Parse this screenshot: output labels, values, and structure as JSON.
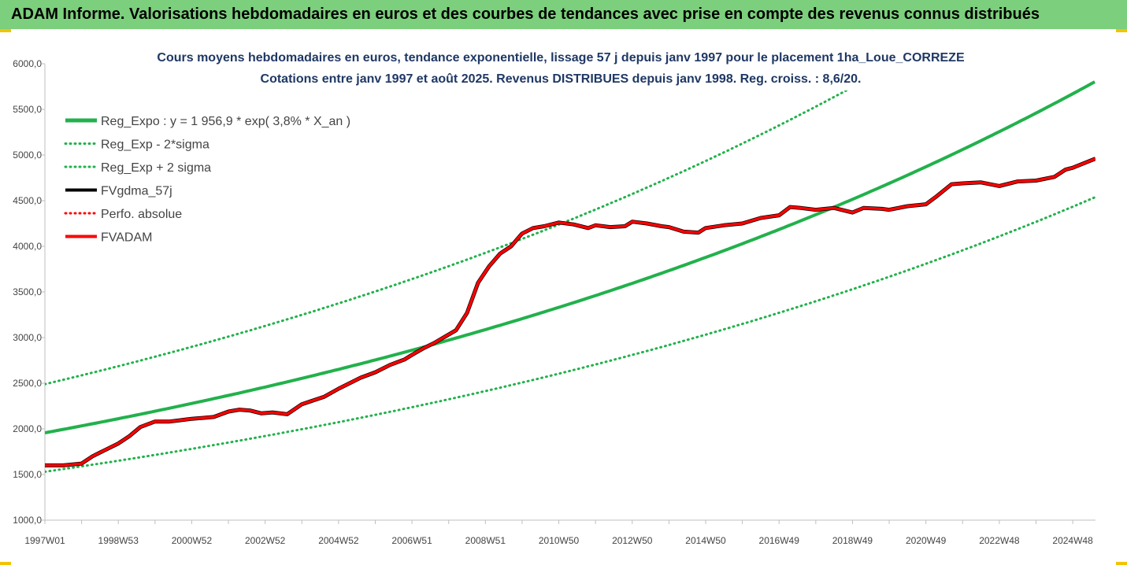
{
  "banner": {
    "text": "ADAM Informe. Valorisations hebdomadaires en euros et des courbes de tendances avec prise en compte des revenus connus distribués"
  },
  "chart_data": {
    "type": "line",
    "title_line1": "Cours moyens hebdomadaires en euros, tendance exponentielle, lissage 57 j depuis janv 1997  pour le placement 1ha_Loue_CORREZE",
    "title_line2": "Cotations entre janv 1997 et août 2025. Revenus DISTRIBUES depuis janv 1998. Reg. croiss. : 8,6/20.",
    "ylim": [
      1000,
      6000
    ],
    "y_ticks": [
      1000,
      1500,
      2000,
      2500,
      3000,
      3500,
      4000,
      4500,
      5000,
      5500,
      6000
    ],
    "y_tick_labels": [
      "1000,0",
      "1500,0",
      "2000,0",
      "2500,0",
      "3000,0",
      "3500,0",
      "4000,0",
      "4500,0",
      "5000,0",
      "5500,0",
      "6000,0"
    ],
    "x_range": [
      1997.0,
      2025.62
    ],
    "x_ticks": [
      {
        "x": 1997.0,
        "label": "1997W01"
      },
      {
        "x": 1999.0,
        "label": "1998W53"
      },
      {
        "x": 2001.0,
        "label": "2000W52"
      },
      {
        "x": 2003.0,
        "label": "2002W52"
      },
      {
        "x": 2005.0,
        "label": "2004W52"
      },
      {
        "x": 2007.0,
        "label": "2006W51"
      },
      {
        "x": 2009.0,
        "label": "2008W51"
      },
      {
        "x": 2011.0,
        "label": "2010W50"
      },
      {
        "x": 2013.0,
        "label": "2012W50"
      },
      {
        "x": 2015.0,
        "label": "2014W50"
      },
      {
        "x": 2017.0,
        "label": "2016W49"
      },
      {
        "x": 2019.0,
        "label": "2018W49"
      },
      {
        "x": 2021.0,
        "label": "2020W49"
      },
      {
        "x": 2023.0,
        "label": "2022W48"
      },
      {
        "x": 2025.0,
        "label": "2024W48"
      }
    ],
    "trend": {
      "base": 1956.9,
      "rate": 0.038
    },
    "band_low": {
      "base": 1530,
      "rate": 0.038
    },
    "band_high": {
      "base": 2490,
      "rate": 0.038
    },
    "series": [
      {
        "name": "Reg_Expo : y = 1 956,9 * exp( 3,8% *  X_an )",
        "color": "#22b14c",
        "style": "solid"
      },
      {
        "name": "Reg_Exp - 2*sigma",
        "color": "#22b14c",
        "style": "dotted"
      },
      {
        "name": "Reg_Exp + 2 sigma",
        "color": "#22b14c",
        "style": "dotted"
      },
      {
        "name": "FVgdma_57j",
        "color": "#000000",
        "style": "solid",
        "x": [
          1997.0,
          1997.5,
          1998.0,
          1998.3,
          1998.6,
          1999.0,
          1999.3,
          1999.6,
          2000.0,
          2000.4,
          2000.8,
          2001.0,
          2001.3,
          2001.6,
          2002.0,
          2002.3,
          2002.6,
          2002.9,
          2003.2,
          2003.6,
          2004.0,
          2004.3,
          2004.6,
          2005.0,
          2005.3,
          2005.6,
          2006.0,
          2006.4,
          2006.8,
          2007.0,
          2007.3,
          2007.6,
          2007.9,
          2008.2,
          2008.5,
          2008.8,
          2009.1,
          2009.4,
          2009.7,
          2010.0,
          2010.3,
          2010.6,
          2011.0,
          2011.4,
          2011.8,
          2012.0,
          2012.4,
          2012.8,
          2013.0,
          2013.4,
          2013.8,
          2014.0,
          2014.4,
          2014.8,
          2015.0,
          2015.5,
          2016.0,
          2016.5,
          2017.0,
          2017.3,
          2017.6,
          2018.0,
          2018.5,
          2019.0,
          2019.3,
          2019.8,
          2020.0,
          2020.5,
          2021.0,
          2021.3,
          2021.7,
          2022.0,
          2022.5,
          2023.0,
          2023.5,
          2024.0,
          2024.5,
          2024.8,
          2025.0,
          2025.62
        ],
        "values": [
          1600,
          1600,
          1620,
          1700,
          1760,
          1840,
          1920,
          2020,
          2080,
          2080,
          2100,
          2110,
          2120,
          2130,
          2190,
          2210,
          2200,
          2170,
          2180,
          2160,
          2270,
          2310,
          2350,
          2440,
          2500,
          2560,
          2620,
          2700,
          2760,
          2810,
          2880,
          2940,
          3010,
          3080,
          3270,
          3600,
          3780,
          3920,
          4000,
          4140,
          4200,
          4220,
          4260,
          4240,
          4200,
          4230,
          4210,
          4220,
          4270,
          4250,
          4220,
          4210,
          4160,
          4150,
          4200,
          4230,
          4250,
          4310,
          4340,
          4430,
          4420,
          4400,
          4420,
          4370,
          4420,
          4410,
          4400,
          4440,
          4460,
          4550,
          4680,
          4690,
          4700,
          4660,
          4710,
          4720,
          4760,
          4840,
          4860,
          4960
        ]
      },
      {
        "name": "Perfo. absolue",
        "color": "#ff0000",
        "style": "dotted"
      },
      {
        "name": "FVADAM",
        "color": "#ff0000",
        "style": "solid",
        "x": [
          1997.0,
          1997.5,
          1998.0,
          1998.3,
          1998.6,
          1999.0,
          1999.3,
          1999.6,
          2000.0,
          2000.4,
          2000.8,
          2001.0,
          2001.3,
          2001.6,
          2002.0,
          2002.3,
          2002.6,
          2002.9,
          2003.2,
          2003.6,
          2004.0,
          2004.3,
          2004.6,
          2005.0,
          2005.3,
          2005.6,
          2006.0,
          2006.4,
          2006.8,
          2007.0,
          2007.3,
          2007.6,
          2007.9,
          2008.2,
          2008.5,
          2008.8,
          2009.1,
          2009.4,
          2009.7,
          2010.0,
          2010.3,
          2010.6,
          2011.0,
          2011.4,
          2011.8,
          2012.0,
          2012.4,
          2012.8,
          2013.0,
          2013.4,
          2013.8,
          2014.0,
          2014.4,
          2014.8,
          2015.0,
          2015.5,
          2016.0,
          2016.5,
          2017.0,
          2017.3,
          2017.6,
          2018.0,
          2018.5,
          2019.0,
          2019.3,
          2019.8,
          2020.0,
          2020.5,
          2021.0,
          2021.3,
          2021.7,
          2022.0,
          2022.5,
          2023.0,
          2023.5,
          2024.0,
          2024.5,
          2024.8,
          2025.0,
          2025.62
        ],
        "values": [
          1600,
          1600,
          1620,
          1700,
          1760,
          1840,
          1920,
          2020,
          2080,
          2080,
          2100,
          2110,
          2120,
          2130,
          2190,
          2210,
          2200,
          2170,
          2180,
          2160,
          2270,
          2310,
          2350,
          2440,
          2500,
          2560,
          2620,
          2700,
          2760,
          2810,
          2880,
          2940,
          3010,
          3080,
          3270,
          3600,
          3780,
          3920,
          4000,
          4140,
          4200,
          4220,
          4260,
          4240,
          4200,
          4230,
          4210,
          4220,
          4270,
          4250,
          4220,
          4210,
          4160,
          4150,
          4200,
          4230,
          4250,
          4310,
          4340,
          4430,
          4420,
          4400,
          4420,
          4370,
          4420,
          4410,
          4400,
          4440,
          4460,
          4550,
          4680,
          4690,
          4700,
          4660,
          4710,
          4720,
          4760,
          4840,
          4860,
          4960
        ]
      }
    ],
    "legend_position": "top-left",
    "grid": false
  }
}
